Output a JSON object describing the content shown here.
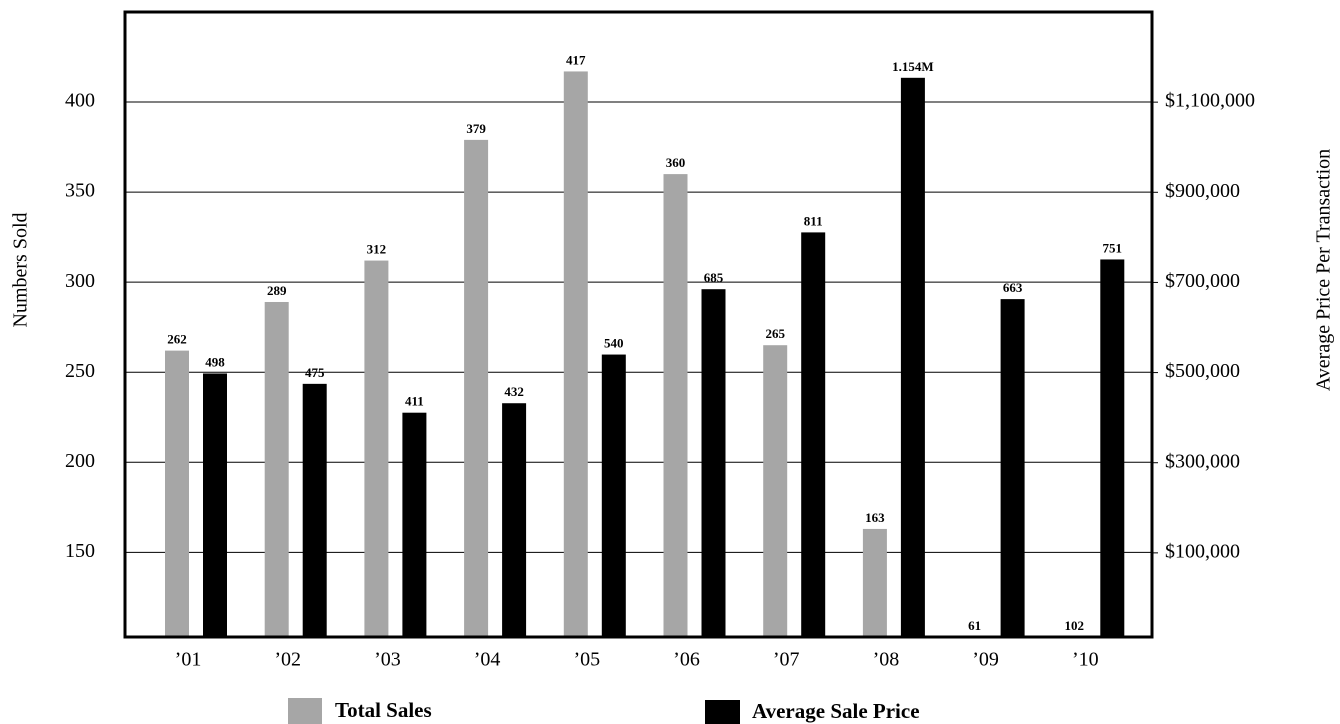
{
  "chart_data": {
    "type": "bar",
    "categories": [
      "’01",
      "’02",
      "’03",
      "’04",
      "’05",
      "’06",
      "’07",
      "’08",
      "’09",
      "’10"
    ],
    "series": [
      {
        "name": "Total Sales",
        "color": "#a6a6a6",
        "values": [
          262,
          289,
          312,
          379,
          417,
          360,
          265,
          163,
          61,
          102
        ]
      },
      {
        "name": "Average Sale Price",
        "color": "#000000",
        "axis": "y2",
        "values": [
          498000,
          475000,
          411000,
          432000,
          540000,
          685000,
          811000,
          1154000,
          663000,
          751000
        ],
        "value_labels": [
          "498",
          "475",
          "411",
          "432",
          "540",
          "685",
          "811",
          "1.154M",
          "663",
          "751"
        ]
      }
    ],
    "y_label": "Numbers Sold",
    "y2_label": "Average Price Per Transaction",
    "ylim": [
      103,
      450
    ],
    "yticks": [
      150,
      200,
      250,
      300,
      350,
      400
    ],
    "y2lim": [
      -86667,
      1300000
    ],
    "y2ticks": [
      {
        "value": 100000,
        "label": "$100,000"
      },
      {
        "value": 300000,
        "label": "$300,000"
      },
      {
        "value": 500000,
        "label": "$500,000"
      },
      {
        "value": 700000,
        "label": "$700,000"
      },
      {
        "value": 900000,
        "label": "$900,000"
      },
      {
        "value": 1100000,
        "label": "$1,100,000"
      }
    ],
    "grid": true
  }
}
